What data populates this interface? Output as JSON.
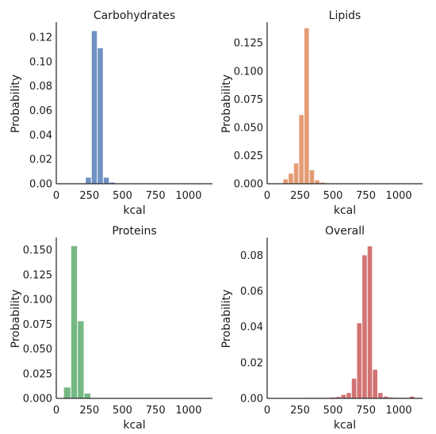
{
  "chart_data": [
    {
      "type": "bar",
      "title": "Carbohydrates",
      "xlabel": "kcal",
      "ylabel": "Probability",
      "color": "#6f92c4",
      "xlim": [
        0,
        1180
      ],
      "ylim": [
        0,
        0.131
      ],
      "xticks": [
        0,
        250,
        500,
        750,
        1000
      ],
      "yticks": [
        0.0,
        0.02,
        0.04,
        0.06,
        0.08,
        0.1,
        0.12
      ],
      "ytick_labels": [
        "0.00",
        "0.02",
        "0.04",
        "0.06",
        "0.08",
        "0.10",
        "0.12"
      ],
      "bin_edges": [
        220,
        265,
        310,
        355,
        400,
        445
      ],
      "values": [
        0.005,
        0.125,
        0.111,
        0.005,
        0.001
      ]
    },
    {
      "type": "bar",
      "title": "Lipids",
      "xlabel": "kcal",
      "ylabel": "Probability",
      "color": "#e39c74",
      "xlim": [
        0,
        1180
      ],
      "ylim": [
        0,
        0.142
      ],
      "xticks": [
        0,
        250,
        500,
        750,
        1000
      ],
      "yticks": [
        0.0,
        0.025,
        0.05,
        0.075,
        0.1,
        0.125
      ],
      "ytick_labels": [
        "0.000",
        "0.025",
        "0.050",
        "0.075",
        "0.100",
        "0.125"
      ],
      "bin_edges": [
        120,
        160,
        200,
        240,
        280,
        320,
        360,
        400,
        440
      ],
      "values": [
        0.004,
        0.009,
        0.018,
        0.061,
        0.138,
        0.012,
        0.003,
        0.001
      ]
    },
    {
      "type": "bar",
      "title": "Proteins",
      "xlabel": "kcal",
      "ylabel": "Probability",
      "color": "#76b884",
      "xlim": [
        0,
        1180
      ],
      "ylim": [
        0,
        0.161
      ],
      "xticks": [
        0,
        250,
        500,
        750,
        1000
      ],
      "yticks": [
        0.0,
        0.025,
        0.05,
        0.075,
        0.1,
        0.125,
        0.15
      ],
      "ytick_labels": [
        "0.000",
        "0.025",
        "0.050",
        "0.075",
        "0.100",
        "0.125",
        "0.150"
      ],
      "bin_edges": [
        55,
        110,
        160,
        210,
        260
      ],
      "values": [
        0.011,
        0.154,
        0.078,
        0.005
      ]
    },
    {
      "type": "bar",
      "title": "Overall",
      "xlabel": "kcal",
      "ylabel": "Probability",
      "color": "#d27373",
      "xlim": [
        0,
        1180
      ],
      "ylim": [
        0,
        0.089
      ],
      "xticks": [
        0,
        250,
        500,
        750,
        1000
      ],
      "yticks": [
        0.0,
        0.02,
        0.04,
        0.06,
        0.08
      ],
      "ytick_labels": [
        "0.00",
        "0.02",
        "0.04",
        "0.06",
        "0.08"
      ],
      "bin_edges": [
        280,
        320,
        360,
        400,
        440,
        480,
        520,
        560,
        600,
        640,
        680,
        720,
        760,
        800,
        840,
        880,
        920,
        960,
        1000,
        1040,
        1080,
        1120
      ],
      "values": [
        0.0003,
        0.0003,
        0.0003,
        0.0003,
        0.0003,
        0.0005,
        0.0008,
        0.002,
        0.003,
        0.011,
        0.042,
        0.08,
        0.085,
        0.016,
        0.003,
        0.001,
        0.0005,
        0.0003,
        0.0003,
        0.0003,
        0.001
      ]
    }
  ]
}
